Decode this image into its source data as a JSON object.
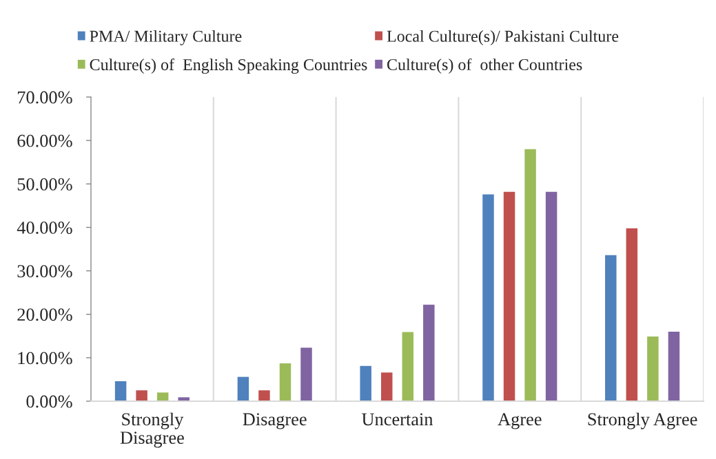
{
  "chart_data": {
    "type": "bar",
    "categories": [
      "Strongly Disagree",
      "Disagree",
      "Uncertain",
      "Agree",
      "Strongly Agree"
    ],
    "series": [
      {
        "name": "PMA/ Military Culture",
        "color": "#4f81bd",
        "values": [
          4.6,
          5.6,
          8.1,
          47.6,
          33.6
        ]
      },
      {
        "name": "Local Culture(s)/ Pakistani Culture",
        "color": "#c0504d",
        "values": [
          2.5,
          2.5,
          6.6,
          48.2,
          39.8
        ]
      },
      {
        "name": "Culture(s) of  English Speaking Countries",
        "color": "#9bbb59",
        "values": [
          2.0,
          8.7,
          15.9,
          58.0,
          14.9
        ]
      },
      {
        "name": "Culture(s) of  other Countries",
        "color": "#8064a2",
        "values": [
          0.9,
          12.3,
          22.2,
          48.2,
          16.0
        ]
      }
    ],
    "ylim": [
      0,
      70
    ],
    "yticks": [
      {
        "value": 0,
        "label": "0.00%"
      },
      {
        "value": 10,
        "label": "10.00%"
      },
      {
        "value": 20,
        "label": "20.00%"
      },
      {
        "value": 30,
        "label": "30.00%"
      },
      {
        "value": 40,
        "label": "40.00%"
      },
      {
        "value": 50,
        "label": "50.00%"
      },
      {
        "value": 60,
        "label": "60.00%"
      },
      {
        "value": 70,
        "label": "70.00%"
      }
    ],
    "grid": "x",
    "legend": "top"
  }
}
